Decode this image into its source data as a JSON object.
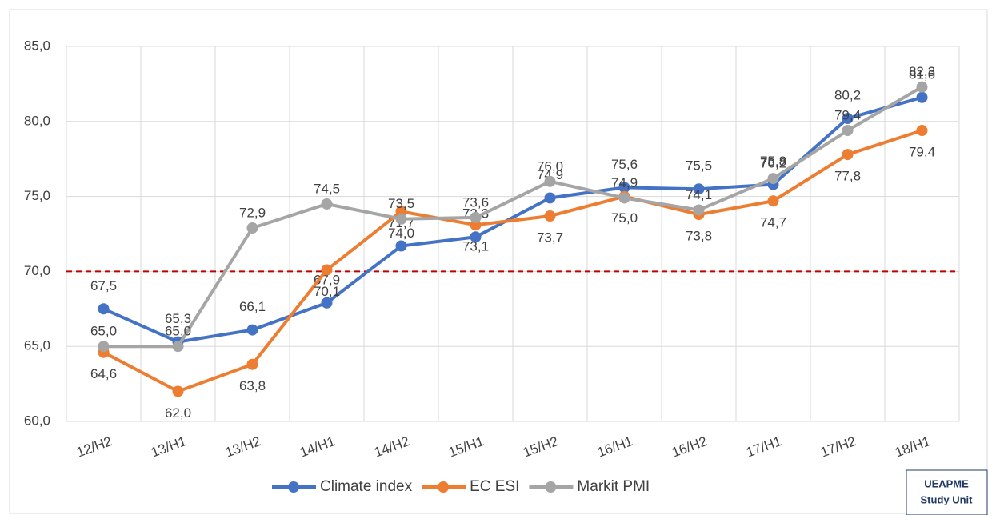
{
  "chart_data": {
    "type": "line",
    "categories": [
      "12/H2",
      "13/H1",
      "13/H2",
      "14/H1",
      "14/H2",
      "15/H1",
      "15/H2",
      "16/H1",
      "16/H2",
      "17/H1",
      "17/H2",
      "18/H1"
    ],
    "series": [
      {
        "name": "Climate index",
        "color": "#4472c4",
        "values": [
          67.5,
          65.3,
          66.1,
          67.9,
          71.7,
          72.3,
          74.9,
          75.6,
          75.5,
          75.8,
          80.2,
          81.6
        ],
        "value_labels": [
          "67,5",
          "65,3",
          "66,1",
          "67,9",
          "71,7",
          "72,3",
          "74,9",
          "75,6",
          "75,5",
          "75,8",
          "80,2",
          "81,6"
        ]
      },
      {
        "name": "EC ESI",
        "color": "#ed7d31",
        "values": [
          64.6,
          62.0,
          63.8,
          70.1,
          74.0,
          73.1,
          73.7,
          75.0,
          73.8,
          74.7,
          77.8,
          79.4
        ],
        "value_labels": [
          "64,6",
          "62,0",
          "63,8",
          "70,1",
          "74,0",
          "73,1",
          "73,7",
          "75,0",
          "73,8",
          "74,7",
          "77,8",
          "79,4"
        ]
      },
      {
        "name": "Markit PMI",
        "color": "#a5a5a5",
        "values": [
          65.0,
          65.0,
          72.9,
          74.5,
          73.5,
          73.6,
          76.0,
          74.9,
          74.1,
          76.2,
          79.4,
          82.3
        ],
        "value_labels": [
          "65,0",
          "65,0",
          "72,9",
          "74,5",
          "73,5",
          "73,6",
          "76,0",
          "74,9",
          "74,1",
          "76,2",
          "79,4",
          "82,3"
        ]
      }
    ],
    "ylim": [
      60,
      85
    ],
    "yticks": [
      {
        "value": 60,
        "label": "60,0"
      },
      {
        "value": 65,
        "label": "65,0"
      },
      {
        "value": 70,
        "label": "70,0"
      },
      {
        "value": 75,
        "label": "75,0"
      },
      {
        "value": 80,
        "label": "80,0"
      },
      {
        "value": 85,
        "label": "85,0"
      }
    ],
    "grid": true,
    "reference_line": {
      "value": 70,
      "color": "#c00000"
    },
    "legend": "bottom",
    "annotations": [
      "UEAPME",
      "Study Unit"
    ]
  }
}
